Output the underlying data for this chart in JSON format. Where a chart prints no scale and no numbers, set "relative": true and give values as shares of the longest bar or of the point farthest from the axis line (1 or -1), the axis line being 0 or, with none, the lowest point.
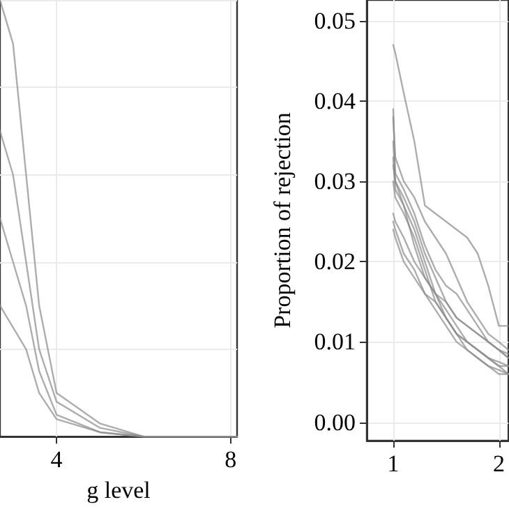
{
  "chart_data": [
    {
      "type": "line",
      "xlabel": "g level",
      "relative": true,
      "x": [
        2.7,
        3,
        3.3,
        3.6,
        4,
        5,
        6,
        7,
        8.15
      ],
      "xlim": [
        2.7,
        8.15
      ],
      "xticks": [
        4,
        8
      ],
      "tick_labels": "x",
      "grid": true,
      "marker": "none",
      "line_style": "solid",
      "series": [
        {
          "color": "#8a8a8a",
          "values": [
            1,
            0.9,
            0.6,
            0.3,
            0.1,
            0.03,
            0,
            0,
            0
          ]
        },
        {
          "color": "#8a8a8a",
          "values": [
            0.7,
            0.6,
            0.4,
            0.2,
            0.08,
            0.02,
            0,
            0,
            0
          ]
        },
        {
          "color": "#8a8a8a",
          "values": [
            0.5,
            0.4,
            0.3,
            0.15,
            0.05,
            0.01,
            0,
            0,
            0
          ]
        },
        {
          "color": "#8a8a8a",
          "values": [
            0.3,
            0.25,
            0.2,
            0.1,
            0.04,
            0.01,
            0,
            0,
            0
          ]
        }
      ]
    },
    {
      "type": "line",
      "ylabel": "Proportion of rejection",
      "x": [
        1,
        1.02,
        1.1,
        1.2,
        1.3,
        1.4,
        1.5,
        1.6,
        1.7,
        1.8,
        1.9,
        2.0,
        2.09
      ],
      "xlim": [
        0.75,
        2.09
      ],
      "xticks": [
        1,
        2
      ],
      "ylim": [
        -0.0023,
        0.0526
      ],
      "yticks": [
        {
          "value": 0,
          "label": "0.00"
        },
        {
          "value": 0.01,
          "label": "0.01"
        },
        {
          "value": 0.02,
          "label": "0.02"
        },
        {
          "value": 0.03,
          "label": "0.03"
        },
        {
          "value": 0.04,
          "label": "0.04"
        },
        {
          "value": 0.05,
          "label": "0.05"
        }
      ],
      "grid": true,
      "marker": "none",
      "line_style": "solid",
      "series": [
        {
          "color": "#8a8a8a",
          "values": [
            0.047,
            0.046,
            0.041,
            0.035,
            0.027,
            0.026,
            0.025,
            0.024,
            0.023,
            0.021,
            0.017,
            0.012,
            0.012
          ]
        },
        {
          "color": "#8a8a8a",
          "values": [
            0.039,
            0.031,
            0.029,
            0.026,
            0.022,
            0.019,
            0.017,
            0.016,
            0.014,
            0.012,
            0.01,
            0.009,
            0.0085
          ]
        },
        {
          "color": "#8a8a8a",
          "values": [
            0.038,
            0.033,
            0.03,
            0.028,
            0.025,
            0.023,
            0.021,
            0.018,
            0.015,
            0.013,
            0.011,
            0.01,
            0.009
          ]
        },
        {
          "color": "#8a8a8a",
          "values": [
            0.035,
            0.03,
            0.028,
            0.025,
            0.021,
            0.018,
            0.015,
            0.013,
            0.012,
            0.011,
            0.01,
            0.009,
            0.008
          ]
        },
        {
          "color": "#8a8a8a",
          "values": [
            0.033,
            0.029,
            0.027,
            0.024,
            0.02,
            0.016,
            0.014,
            0.012,
            0.01,
            0.009,
            0.008,
            0.007,
            0.007
          ]
        },
        {
          "color": "#8a8a8a",
          "values": [
            0.03,
            0.028,
            0.026,
            0.023,
            0.019,
            0.015,
            0.013,
            0.011,
            0.01,
            0.009,
            0.008,
            0.007,
            0.006
          ]
        },
        {
          "color": "#8a8a8a",
          "values": [
            0.026,
            0.025,
            0.023,
            0.02,
            0.018,
            0.016,
            0.015,
            0.013,
            0.012,
            0.011,
            0.01,
            0.009,
            0.008
          ]
        },
        {
          "color": "#8a8a8a",
          "values": [
            0.025,
            0.024,
            0.021,
            0.019,
            0.016,
            0.014,
            0.012,
            0.01,
            0.009,
            0.008,
            0.007,
            0.006,
            0.006
          ]
        },
        {
          "color": "#8a8a8a",
          "values": [
            0.024,
            0.023,
            0.02,
            0.018,
            0.016,
            0.015,
            0.013,
            0.011,
            0.009,
            0.008,
            0.007,
            0.0065,
            0.006
          ]
        },
        {
          "color": "#8a8a8a",
          "values": [
            0.032,
            0.03,
            0.027,
            0.022,
            0.018,
            0.016,
            0.013,
            0.011,
            0.01,
            0.009,
            0.008,
            0.0075,
            0.007
          ]
        }
      ]
    }
  ]
}
